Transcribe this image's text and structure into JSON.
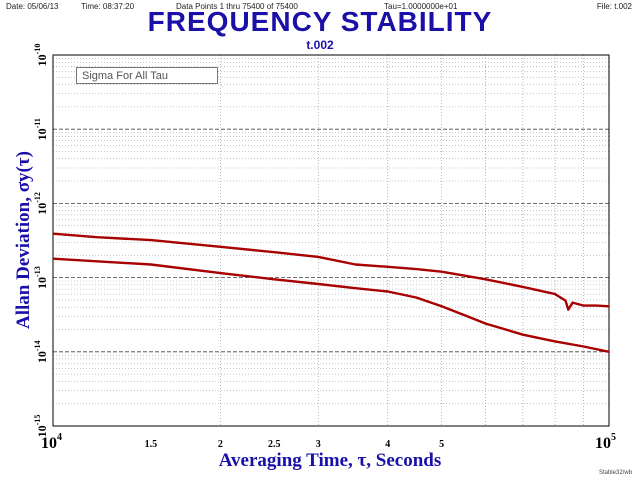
{
  "header": {
    "date": "Date: 05/06/13",
    "time": "Time: 08:37:20",
    "points": "Data Points 1 thru 75400 of 75400",
    "tau": "Tau=1.0000000e+01",
    "file": "File: t.002"
  },
  "footer": "Stable32/wb",
  "colors": {
    "title": "#1a10a8",
    "series": "#a80000",
    "grid": "#8a8a8a"
  },
  "chart_data": {
    "type": "line",
    "title": "FREQUENCY STABILITY",
    "subtitle": "t.002",
    "xlabel": "Averaging Time, τ, Seconds",
    "ylabel": "Allan Deviation, σy(τ)",
    "legend": "Sigma For All Tau",
    "x_scale": "log",
    "y_scale": "log",
    "xlim": [
      10000,
      100000
    ],
    "ylim": [
      1e-15,
      1e-10
    ],
    "x_ticks": [
      {
        "v": 10000,
        "label": "10",
        "exp": "4",
        "major": true
      },
      {
        "v": 15000,
        "label": "1.5"
      },
      {
        "v": 20000,
        "label": "2"
      },
      {
        "v": 25000,
        "label": "2.5"
      },
      {
        "v": 30000,
        "label": "3"
      },
      {
        "v": 40000,
        "label": "4"
      },
      {
        "v": 50000,
        "label": "5"
      },
      {
        "v": 100000,
        "label": "10",
        "exp": "5",
        "major": true
      }
    ],
    "y_ticks": [
      {
        "v": 1e-15,
        "label": "10",
        "exp": "-15"
      },
      {
        "v": 1e-14,
        "label": "10",
        "exp": "-14"
      },
      {
        "v": 1e-13,
        "label": "10",
        "exp": "-13"
      },
      {
        "v": 1e-12,
        "label": "10",
        "exp": "-12"
      },
      {
        "v": 1e-11,
        "label": "10",
        "exp": "-11"
      },
      {
        "v": 1e-10,
        "label": "10",
        "exp": "-10"
      }
    ],
    "series": [
      {
        "points": [
          [
            10000,
            3.9e-13
          ],
          [
            12000,
            3.5e-13
          ],
          [
            15000,
            3.2e-13
          ],
          [
            20000,
            2.6e-13
          ],
          [
            25000,
            2.2e-13
          ],
          [
            30000,
            1.9e-13
          ],
          [
            35000,
            1.5e-13
          ],
          [
            40000,
            1.4e-13
          ],
          [
            45000,
            1.3e-13
          ],
          [
            50000,
            1.2e-13
          ],
          [
            60000,
            9.5e-14
          ],
          [
            70000,
            7.5e-14
          ],
          [
            80000,
            6e-14
          ],
          [
            83500,
            4.9e-14
          ],
          [
            84500,
            3.7e-14
          ],
          [
            86000,
            4.6e-14
          ],
          [
            90000,
            4.2e-14
          ],
          [
            95000,
            4.2e-14
          ],
          [
            100000,
            4.1e-14
          ]
        ]
      },
      {
        "points": [
          [
            10000,
            1.8e-13
          ],
          [
            15000,
            1.5e-13
          ],
          [
            20000,
            1.15e-13
          ],
          [
            25000,
            9.5e-14
          ],
          [
            30000,
            8.2e-14
          ],
          [
            35000,
            7.2e-14
          ],
          [
            40000,
            6.5e-14
          ],
          [
            45000,
            5.4e-14
          ],
          [
            50000,
            4.1e-14
          ],
          [
            55000,
            3.1e-14
          ],
          [
            60000,
            2.4e-14
          ],
          [
            70000,
            1.7e-14
          ],
          [
            80000,
            1.38e-14
          ],
          [
            90000,
            1.18e-14
          ],
          [
            100000,
            1e-14
          ]
        ]
      }
    ]
  }
}
